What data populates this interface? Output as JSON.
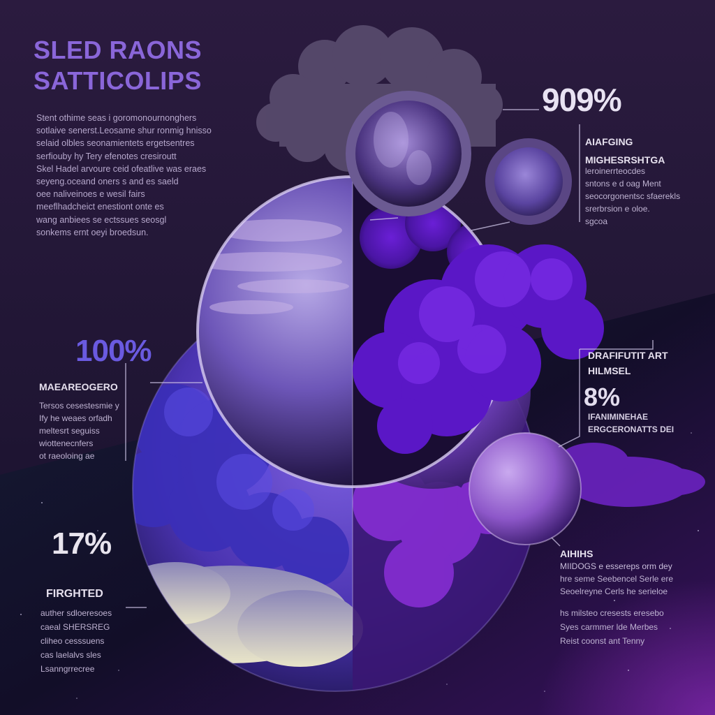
{
  "title": {
    "line1": "SLED RAONS",
    "line2": "SATTICOLIPS"
  },
  "intro_lines": [
    "Stent othime seas i goromonournonghers",
    "sotlaive senerst.Leosame shur ronmig hnisso",
    "selaid olbles seonamientets ergetsentres",
    "serfiouby hy Tery efenotes cresiroutt",
    "Skel Hadel arvoure ceid ofeatlive was eraes",
    "seyeng.oceand oners s and es saeld",
    "oee naliveinoes e wesil fairs",
    "meeflhadcheict enestiont onte es",
    "wang anbiees se ectssues seosgl",
    "sonkems ernt oeyi broedsun."
  ],
  "stats": {
    "top_right": "909%",
    "left_mid": "100%",
    "left_bottom": "17%",
    "right_mid": "8%"
  },
  "right_top": {
    "heading1": "AIAFGING",
    "heading2": "MIGHESRSHTGA",
    "lines": [
      "leroinerrteocdes",
      "sntons e d oag Ment",
      "seocorgonentsc sfaerekls",
      "srerbrsion e oloe.",
      "sgcoa"
    ]
  },
  "left_mid": {
    "heading": "MAEAREOGERO",
    "lines": [
      "Tersos cesestesmie y",
      "Ify he weaes orfadh",
      "meltesrt seguiss",
      "wiottenecnfers",
      "ot raeoloing ae"
    ]
  },
  "right_mid": {
    "heading1": "DRAFIFUTIT ART",
    "heading2": "HILMSEL",
    "lines": [
      "IFANIMINEHAE",
      "ERGCERONATTS DEI"
    ]
  },
  "left_bottom": {
    "heading": "FIRGHTED",
    "lines": [
      "auther sdloeresoes",
      "caeal SHERSREG",
      "cliheo cesssuens",
      "cas laelalvs sles",
      "Lsanngrrecree"
    ]
  },
  "right_bottom": {
    "heading1": "AIHIHS",
    "heading2": "MIIDOGS e essereps orm dey",
    "lines": [
      "hre seme Seebencel Serle ere",
      "Seoelreyne Cerls he serieloe"
    ],
    "lines2": [
      "hs milsteo cresests eresebo",
      "Syes carmmer lde Merbes",
      "Reist coonst ant Tenny"
    ]
  },
  "colors": {
    "background_top": "#2a1a3f",
    "background_bottom": "#120c26",
    "accent_purple": "#8a66d9",
    "accent_blue": "#6a5ae0",
    "cloud_violet": "#7b22e6"
  }
}
